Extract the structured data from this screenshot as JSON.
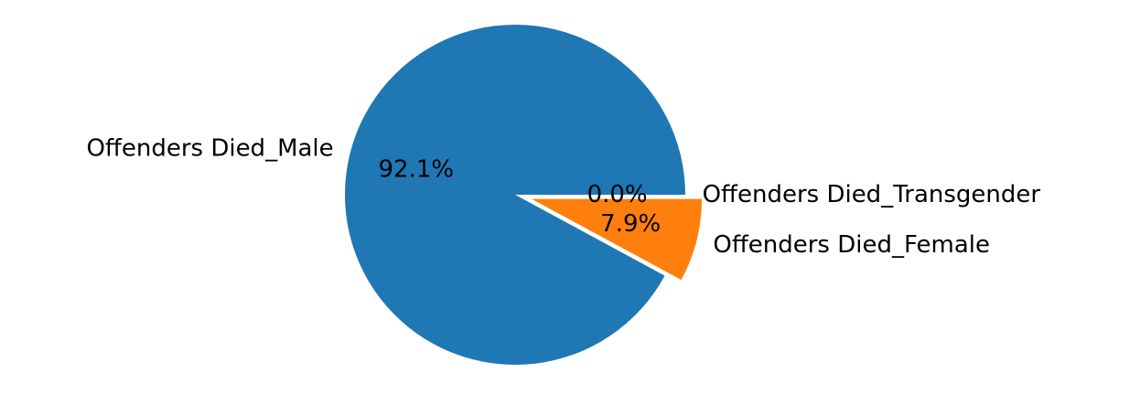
{
  "chart_data": {
    "type": "pie",
    "title": "",
    "start_angle_deg": 0,
    "direction": "clockwise",
    "slices": [
      {
        "label": "Offenders Died_Transgender",
        "value": 0.0,
        "pct_text": "0.0%",
        "color": "#2ca02c",
        "explode": 0
      },
      {
        "label": "Offenders Died_Female",
        "value": 7.9,
        "pct_text": "7.9%",
        "color": "#ff7f0e",
        "explode": 0.1
      },
      {
        "label": "Offenders Died_Male",
        "value": 92.1,
        "pct_text": "92.1%",
        "color": "#1f77b4",
        "explode": 0
      }
    ],
    "edge_color": "#ffffff"
  }
}
